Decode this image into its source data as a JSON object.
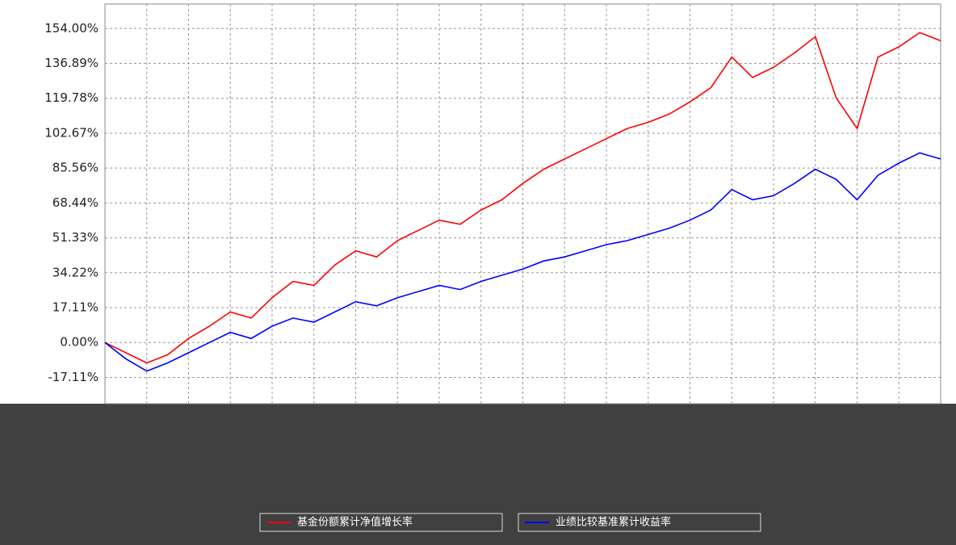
{
  "chart_data": {
    "type": "line",
    "ylim": [
      -30,
      166
    ],
    "yticks": [
      {
        "value": -17.11,
        "label": "-17.11%"
      },
      {
        "value": 0,
        "label": "0.00%"
      },
      {
        "value": 17.11,
        "label": "17.11%"
      },
      {
        "value": 34.22,
        "label": "34.22%"
      },
      {
        "value": 51.33,
        "label": "51.33%"
      },
      {
        "value": 68.44,
        "label": "68.44%"
      },
      {
        "value": 85.56,
        "label": "85.56%"
      },
      {
        "value": 102.67,
        "label": "102.67%"
      },
      {
        "value": 119.78,
        "label": "119.78%"
      },
      {
        "value": 136.89,
        "label": "136.89%"
      },
      {
        "value": 154,
        "label": "154.00%"
      }
    ],
    "grid": true,
    "series": [
      {
        "name": "基金份额累计净值增长率",
        "color": "#ff0000",
        "values": [
          0,
          -5,
          -10,
          -6,
          2,
          8,
          15,
          12,
          22,
          30,
          28,
          38,
          45,
          42,
          50,
          55,
          60,
          58,
          65,
          70,
          78,
          85,
          90,
          95,
          100,
          105,
          108,
          112,
          118,
          125,
          140,
          130,
          135,
          142,
          150,
          120,
          105,
          140,
          145,
          152,
          148
        ]
      },
      {
        "name": "业绩比较基准累计收益率",
        "color": "#0000ff",
        "values": [
          0,
          -8,
          -14,
          -10,
          -5,
          0,
          5,
          2,
          8,
          12,
          10,
          15,
          20,
          18,
          22,
          25,
          28,
          26,
          30,
          33,
          36,
          40,
          42,
          45,
          48,
          50,
          53,
          56,
          60,
          65,
          75,
          70,
          72,
          78,
          85,
          80,
          70,
          82,
          88,
          93,
          90
        ]
      }
    ]
  }
}
